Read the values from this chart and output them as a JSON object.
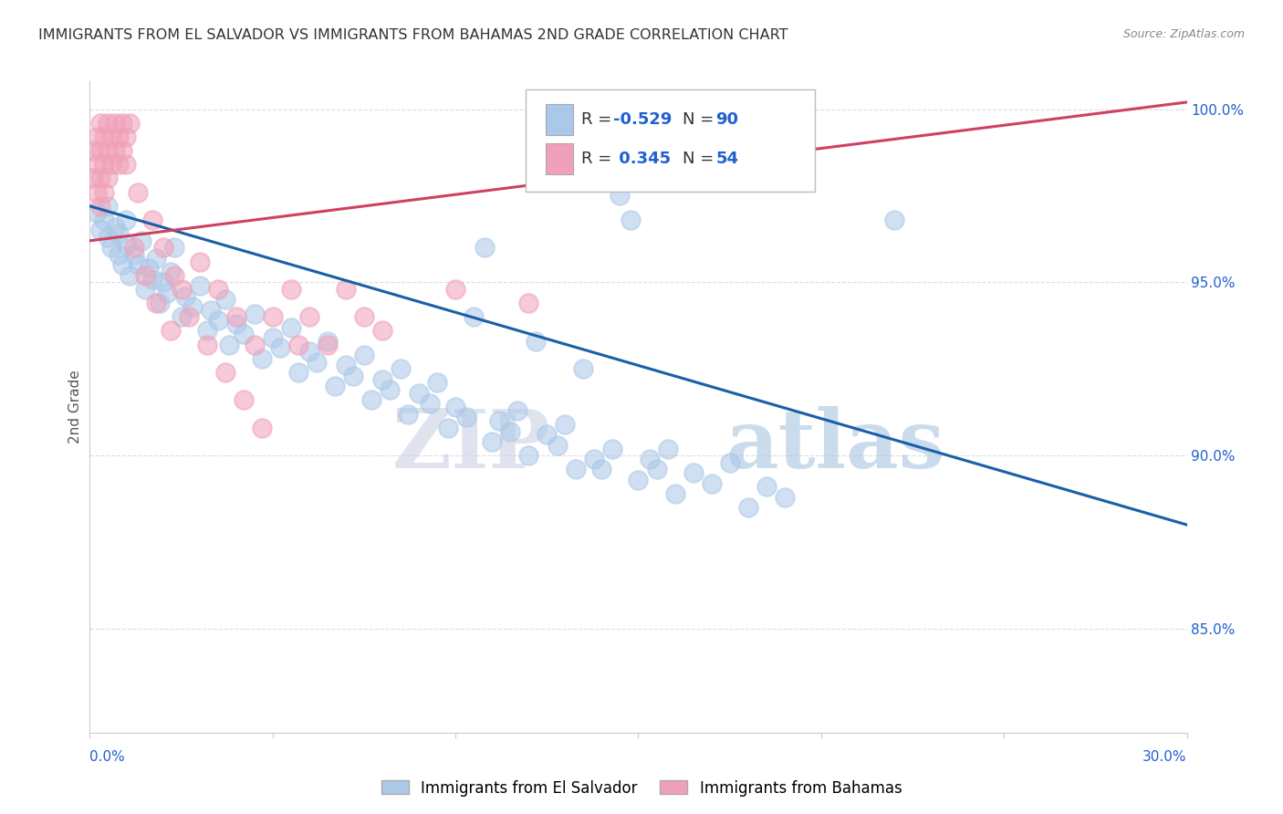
{
  "title": "IMMIGRANTS FROM EL SALVADOR VS IMMIGRANTS FROM BAHAMAS 2ND GRADE CORRELATION CHART",
  "source": "Source: ZipAtlas.com",
  "ylabel": "2nd Grade",
  "xmin": 0.0,
  "xmax": 0.3,
  "ymin": 0.82,
  "ymax": 1.008,
  "blue_color": "#aac8e8",
  "pink_color": "#f0a0b8",
  "line_blue": "#1a5fa8",
  "line_pink": "#d04060",
  "blue_scatter": [
    [
      0.002,
      0.97
    ],
    [
      0.003,
      0.965
    ],
    [
      0.004,
      0.968
    ],
    [
      0.005,
      0.963
    ],
    [
      0.005,
      0.972
    ],
    [
      0.006,
      0.96
    ],
    [
      0.007,
      0.966
    ],
    [
      0.008,
      0.958
    ],
    [
      0.008,
      0.964
    ],
    [
      0.009,
      0.955
    ],
    [
      0.01,
      0.961
    ],
    [
      0.01,
      0.968
    ],
    [
      0.011,
      0.952
    ],
    [
      0.012,
      0.958
    ],
    [
      0.013,
      0.955
    ],
    [
      0.014,
      0.962
    ],
    [
      0.015,
      0.948
    ],
    [
      0.016,
      0.954
    ],
    [
      0.017,
      0.951
    ],
    [
      0.018,
      0.957
    ],
    [
      0.019,
      0.944
    ],
    [
      0.02,
      0.95
    ],
    [
      0.021,
      0.947
    ],
    [
      0.022,
      0.953
    ],
    [
      0.023,
      0.96
    ],
    [
      0.025,
      0.94
    ],
    [
      0.026,
      0.946
    ],
    [
      0.028,
      0.943
    ],
    [
      0.03,
      0.949
    ],
    [
      0.032,
      0.936
    ],
    [
      0.033,
      0.942
    ],
    [
      0.035,
      0.939
    ],
    [
      0.037,
      0.945
    ],
    [
      0.038,
      0.932
    ],
    [
      0.04,
      0.938
    ],
    [
      0.042,
      0.935
    ],
    [
      0.045,
      0.941
    ],
    [
      0.047,
      0.928
    ],
    [
      0.05,
      0.934
    ],
    [
      0.052,
      0.931
    ],
    [
      0.055,
      0.937
    ],
    [
      0.057,
      0.924
    ],
    [
      0.06,
      0.93
    ],
    [
      0.062,
      0.927
    ],
    [
      0.065,
      0.933
    ],
    [
      0.067,
      0.92
    ],
    [
      0.07,
      0.926
    ],
    [
      0.072,
      0.923
    ],
    [
      0.075,
      0.929
    ],
    [
      0.077,
      0.916
    ],
    [
      0.08,
      0.922
    ],
    [
      0.082,
      0.919
    ],
    [
      0.085,
      0.925
    ],
    [
      0.087,
      0.912
    ],
    [
      0.09,
      0.918
    ],
    [
      0.093,
      0.915
    ],
    [
      0.095,
      0.921
    ],
    [
      0.098,
      0.908
    ],
    [
      0.1,
      0.914
    ],
    [
      0.103,
      0.911
    ],
    [
      0.105,
      0.94
    ],
    [
      0.108,
      0.96
    ],
    [
      0.11,
      0.904
    ],
    [
      0.112,
      0.91
    ],
    [
      0.115,
      0.907
    ],
    [
      0.117,
      0.913
    ],
    [
      0.12,
      0.9
    ],
    [
      0.122,
      0.933
    ],
    [
      0.125,
      0.906
    ],
    [
      0.128,
      0.903
    ],
    [
      0.13,
      0.909
    ],
    [
      0.133,
      0.896
    ],
    [
      0.135,
      0.925
    ],
    [
      0.138,
      0.899
    ],
    [
      0.14,
      0.896
    ],
    [
      0.143,
      0.902
    ],
    [
      0.145,
      0.975
    ],
    [
      0.148,
      0.968
    ],
    [
      0.15,
      0.893
    ],
    [
      0.153,
      0.899
    ],
    [
      0.155,
      0.896
    ],
    [
      0.158,
      0.902
    ],
    [
      0.16,
      0.889
    ],
    [
      0.165,
      0.895
    ],
    [
      0.17,
      0.892
    ],
    [
      0.175,
      0.898
    ],
    [
      0.18,
      0.885
    ],
    [
      0.185,
      0.891
    ],
    [
      0.19,
      0.888
    ],
    [
      0.22,
      0.968
    ]
  ],
  "pink_scatter": [
    [
      0.001,
      0.988
    ],
    [
      0.001,
      0.98
    ],
    [
      0.002,
      0.992
    ],
    [
      0.002,
      0.984
    ],
    [
      0.002,
      0.976
    ],
    [
      0.003,
      0.996
    ],
    [
      0.003,
      0.988
    ],
    [
      0.003,
      0.98
    ],
    [
      0.003,
      0.972
    ],
    [
      0.004,
      0.992
    ],
    [
      0.004,
      0.984
    ],
    [
      0.004,
      0.976
    ],
    [
      0.005,
      0.996
    ],
    [
      0.005,
      0.988
    ],
    [
      0.005,
      0.98
    ],
    [
      0.006,
      0.992
    ],
    [
      0.006,
      0.984
    ],
    [
      0.007,
      0.996
    ],
    [
      0.007,
      0.988
    ],
    [
      0.008,
      0.992
    ],
    [
      0.008,
      0.984
    ],
    [
      0.009,
      0.996
    ],
    [
      0.009,
      0.988
    ],
    [
      0.01,
      0.992
    ],
    [
      0.01,
      0.984
    ],
    [
      0.011,
      0.996
    ],
    [
      0.012,
      0.96
    ],
    [
      0.013,
      0.976
    ],
    [
      0.015,
      0.952
    ],
    [
      0.017,
      0.968
    ],
    [
      0.018,
      0.944
    ],
    [
      0.02,
      0.96
    ],
    [
      0.022,
      0.936
    ],
    [
      0.023,
      0.952
    ],
    [
      0.025,
      0.948
    ],
    [
      0.027,
      0.94
    ],
    [
      0.03,
      0.956
    ],
    [
      0.032,
      0.932
    ],
    [
      0.035,
      0.948
    ],
    [
      0.037,
      0.924
    ],
    [
      0.04,
      0.94
    ],
    [
      0.042,
      0.916
    ],
    [
      0.045,
      0.932
    ],
    [
      0.047,
      0.908
    ],
    [
      0.05,
      0.94
    ],
    [
      0.055,
      0.948
    ],
    [
      0.057,
      0.932
    ],
    [
      0.06,
      0.94
    ],
    [
      0.065,
      0.932
    ],
    [
      0.07,
      0.948
    ],
    [
      0.075,
      0.94
    ],
    [
      0.08,
      0.936
    ],
    [
      0.1,
      0.948
    ],
    [
      0.12,
      0.944
    ]
  ],
  "blue_line_x": [
    0.0,
    0.3
  ],
  "blue_line_y": [
    0.972,
    0.88
  ],
  "pink_line_x": [
    0.0,
    0.3
  ],
  "pink_line_y": [
    0.962,
    1.002
  ],
  "watermark_zip": "ZIP",
  "watermark_atlas": "atlas",
  "grid_color": "#dddddd",
  "bg_color": "#ffffff",
  "legend_R1": "-0.529",
  "legend_N1": "90",
  "legend_R2": "0.345",
  "legend_N2": "54"
}
